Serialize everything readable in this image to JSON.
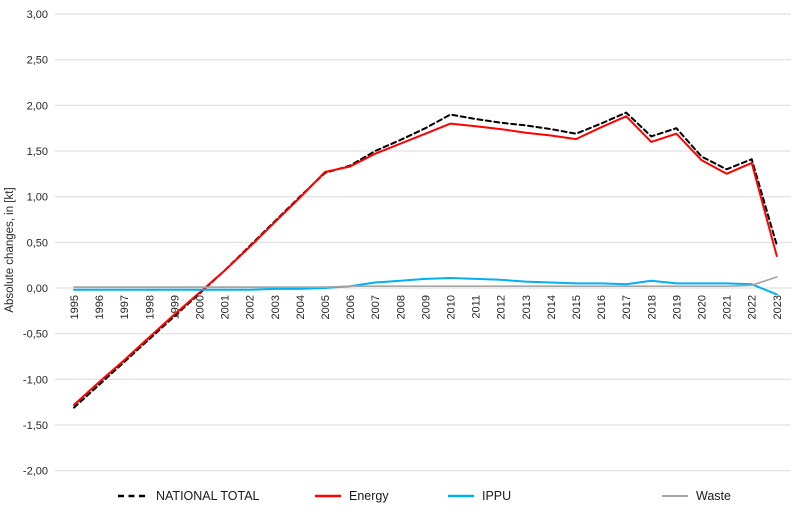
{
  "chart_data": {
    "type": "line",
    "title": "",
    "ylabel": "Absolute changes, in [kt]",
    "xlabel": "",
    "decimal_style": "comma",
    "grid": true,
    "legend_position": "bottom",
    "ylim": [
      -2.0,
      3.0
    ],
    "ytick_step": 0.5,
    "ytick_values": [
      3.0,
      2.5,
      2.0,
      1.5,
      1.0,
      0.5,
      0.0,
      -0.5,
      -1.0,
      -1.5,
      -2.0
    ],
    "ytick_labels": [
      "3,00",
      "2,50",
      "2,00",
      "1,50",
      "1,00",
      "0,50",
      "0,00",
      "-0,50",
      "-1,00",
      "-1,50",
      "-2,00"
    ],
    "x": [
      "1995",
      "1996",
      "1997",
      "1998",
      "1999",
      "2000",
      "2001",
      "2002",
      "2003",
      "2004",
      "2005",
      "2006",
      "2007",
      "2008",
      "2009",
      "2010",
      "2011",
      "2012",
      "2013",
      "2014",
      "2015",
      "2016",
      "2017",
      "2018",
      "2019",
      "2020",
      "2021",
      "2022",
      "2023"
    ],
    "series": [
      {
        "name": "NATIONAL TOTAL",
        "color": "#000000",
        "style": "dashed",
        "width": 2,
        "values": [
          -1.31,
          -1.06,
          -0.81,
          -0.56,
          -0.31,
          -0.06,
          0.19,
          0.46,
          0.73,
          1.0,
          1.26,
          1.34,
          1.5,
          1.62,
          1.75,
          1.9,
          1.85,
          1.81,
          1.78,
          1.74,
          1.69,
          1.8,
          1.92,
          1.66,
          1.75,
          1.44,
          1.3,
          1.41,
          0.47
        ]
      },
      {
        "name": "Energy",
        "color": "#FF0000",
        "style": "solid",
        "width": 2,
        "values": [
          -1.28,
          -1.03,
          -0.79,
          -0.54,
          -0.29,
          -0.05,
          0.19,
          0.45,
          0.72,
          0.99,
          1.27,
          1.33,
          1.47,
          1.58,
          1.69,
          1.8,
          1.77,
          1.74,
          1.7,
          1.67,
          1.63,
          1.76,
          1.88,
          1.6,
          1.69,
          1.4,
          1.25,
          1.37,
          0.35
        ]
      },
      {
        "name": "IPPU",
        "color": "#00B0F0",
        "style": "solid",
        "width": 2,
        "values": [
          -0.02,
          -0.02,
          -0.02,
          -0.02,
          -0.02,
          -0.02,
          -0.02,
          -0.02,
          -0.01,
          -0.01,
          0.0,
          0.02,
          0.06,
          0.08,
          0.1,
          0.11,
          0.1,
          0.09,
          0.07,
          0.06,
          0.05,
          0.05,
          0.04,
          0.08,
          0.05,
          0.05,
          0.05,
          0.04,
          -0.07
        ]
      },
      {
        "name": "Waste",
        "color": "#A6A6A6",
        "style": "solid",
        "width": 1.7,
        "values": [
          0.01,
          0.01,
          0.01,
          0.01,
          0.01,
          0.01,
          0.01,
          0.01,
          0.01,
          0.01,
          0.01,
          0.02,
          0.02,
          0.02,
          0.02,
          0.02,
          0.02,
          0.02,
          0.02,
          0.02,
          0.02,
          0.02,
          0.02,
          0.02,
          0.02,
          0.02,
          0.02,
          0.03,
          0.12
        ]
      }
    ],
    "gridline_color": "#D9D9D9",
    "text_color": "#262626"
  },
  "legend": {
    "items": [
      {
        "label": "NATIONAL TOTAL"
      },
      {
        "label": "Energy"
      },
      {
        "label": "IPPU"
      },
      {
        "label": "Waste"
      }
    ]
  }
}
